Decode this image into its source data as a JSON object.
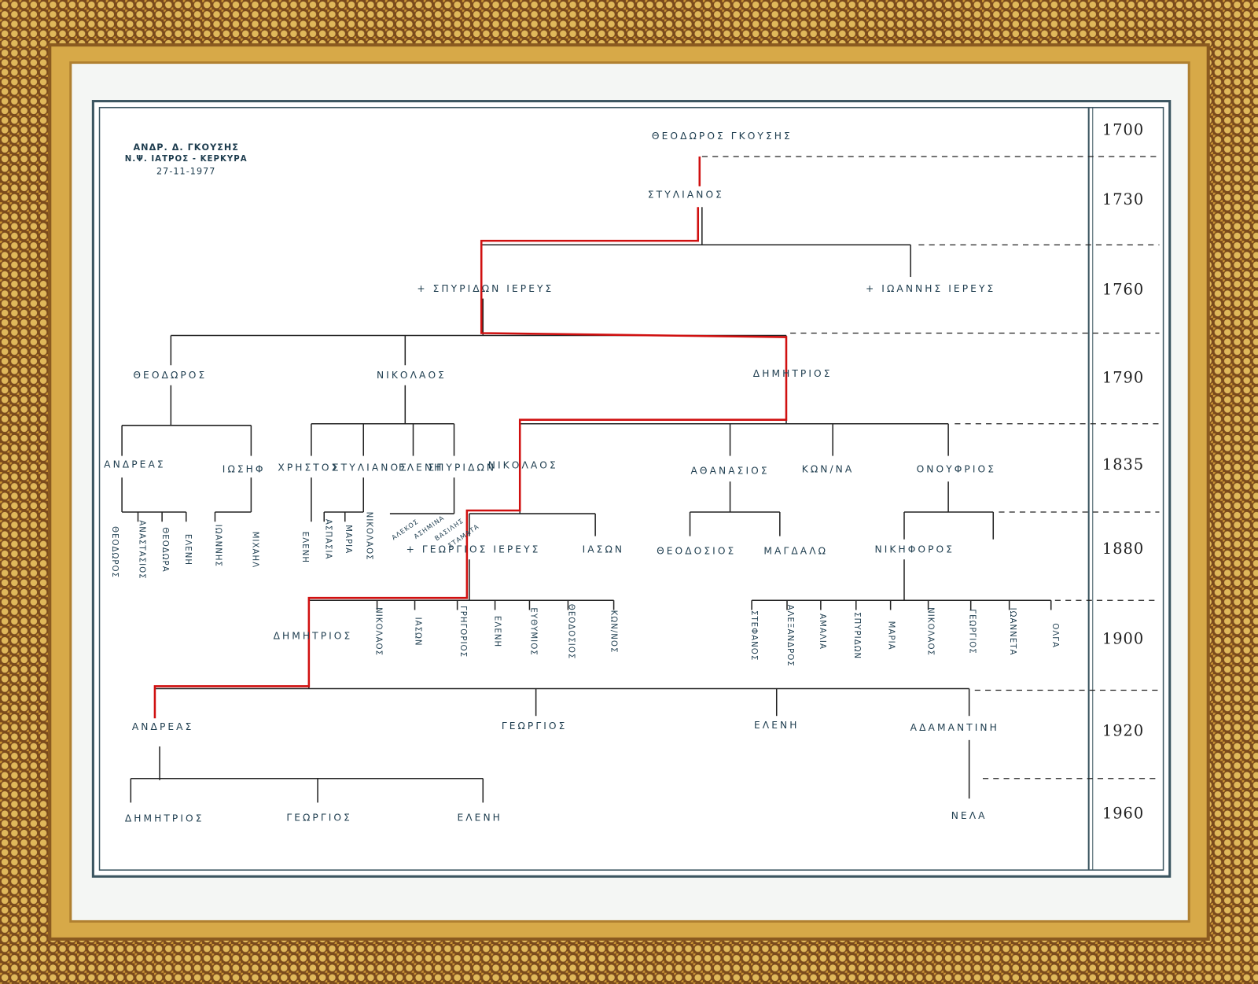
{
  "header": {
    "author": "ΑΝΔΡ. Δ. ΓΚΟΥΣΗΣ",
    "role": "Ν.Ψ. ΙΑΤΡΟΣ - ΚΕΡΚΥΡΑ",
    "date": "27-11-1977"
  },
  "years": [
    "1700",
    "1730",
    "1760",
    "1790",
    "1835",
    "1880",
    "1900",
    "1920",
    "1960"
  ],
  "nodes": [
    {
      "label": "ΘΕΟΔΩΡΟΣ ΓΚΟΥΣΗΣ"
    },
    {
      "label": "ΣΤΥΛΙΑΝΟΣ"
    },
    {
      "label": "+ ΣΠΥΡΙΔΩΝ ΙΕΡΕΥΣ"
    },
    {
      "label": "+ ΙΩΑΝΝΗΣ ΙΕΡΕΥΣ"
    },
    {
      "label": "ΘΕΟΔΩΡΟΣ"
    },
    {
      "label": "ΝΙΚΟΛΑΟΣ"
    },
    {
      "label": "ΔΗΜΗΤΡΙΟΣ"
    },
    {
      "label": "ΑΝΔΡΕΑΣ"
    },
    {
      "label": "ΙΩΣΗΦ"
    },
    {
      "label": "ΧΡΗΣΤΟΣ"
    },
    {
      "label": "ΣΤΥΛΙΑΝΟΣ"
    },
    {
      "label": "ΕΛΕΝΗ"
    },
    {
      "label": "ΣΠΥΡΙΔΩΝ"
    },
    {
      "label": "ΝΙΚΟΛΑΟΣ"
    },
    {
      "label": "ΑΘΑΝΑΣΙΟΣ"
    },
    {
      "label": "ΚΩΝ/ΝΑ"
    },
    {
      "label": "ΟΝΟΥΦΡΙΟΣ"
    },
    {
      "label": "ΘΕΟΔΩΡΟΣ"
    },
    {
      "label": "ΑΝΑΣΤΑΣΙΟΣ"
    },
    {
      "label": "ΘΕΟΔΩΡΑ"
    },
    {
      "label": "ΕΛΕΝΗ"
    },
    {
      "label": "ΙΩΑΝΝΗΣ"
    },
    {
      "label": "ΜΙΧΑΗΛ"
    },
    {
      "label": "ΕΛΕΝΗ"
    },
    {
      "label": "ΑΣΠΑΣΙΑ"
    },
    {
      "label": "ΜΑΡΙΑ"
    },
    {
      "label": "ΝΙΚΟΛΑΟΣ"
    },
    {
      "label": "ΑΛΕΚΟΣ"
    },
    {
      "label": "ΑΣΗΜΙΝΑ"
    },
    {
      "label": "ΒΑΣΙΛΗΣ"
    },
    {
      "label": "ΣΤΑΜΑΤΑ"
    },
    {
      "label": "+ ΓΕΩΡΓΙΟΣ ΙΕΡΕΥΣ"
    },
    {
      "label": "ΙΑΣΩΝ"
    },
    {
      "label": "ΘΕΟΔΟΣΙΟΣ"
    },
    {
      "label": "ΜΑΓΔΑΛΩ"
    },
    {
      "label": "ΝΙΚΗΦΟΡΟΣ"
    },
    {
      "label": "ΔΗΜΗΤΡΙΟΣ"
    },
    {
      "label": "ΝΙΚΟΛΑΟΣ"
    },
    {
      "label": "ΙΑΣΩΝ"
    },
    {
      "label": "ΓΡΗΓΟΡΙΟΣ"
    },
    {
      "label": "ΕΛΕΝΗ"
    },
    {
      "label": "ΕΥΘΥΜΙΟΣ"
    },
    {
      "label": "ΘΕΟΔΟΣΙΟΣ"
    },
    {
      "label": "ΚΩΝ/ΝΟΣ"
    },
    {
      "label": "ΣΤΕΦΑΝΟΣ"
    },
    {
      "label": "ΑΛΕΞΑΝΔΡΟΣ"
    },
    {
      "label": "ΑΜΑΛΙΑ"
    },
    {
      "label": "ΣΠΥΡΙΔΩΝ"
    },
    {
      "label": "ΜΑΡΙΑ"
    },
    {
      "label": "ΝΙΚΟΛΑΟΣ"
    },
    {
      "label": "ΓΕΩΡΓΙΟΣ"
    },
    {
      "label": "ΙΩΑΝΝΕΤΑ"
    },
    {
      "label": "ΟΛΓΑ"
    },
    {
      "label": "ΑΝΔΡΕΑΣ"
    },
    {
      "label": "ΓΕΩΡΓΙΟΣ"
    },
    {
      "label": "ΕΛΕΝΗ"
    },
    {
      "label": "ΑΔΑΜΑΝΤΙΝΗ"
    },
    {
      "label": "ΔΗΜΗΤΡΙΟΣ"
    },
    {
      "label": "ΓΕΩΡΓΙΟΣ"
    },
    {
      "label": "ΕΛΕΝΗ"
    },
    {
      "label": "ΝΕΛΑ"
    }
  ]
}
